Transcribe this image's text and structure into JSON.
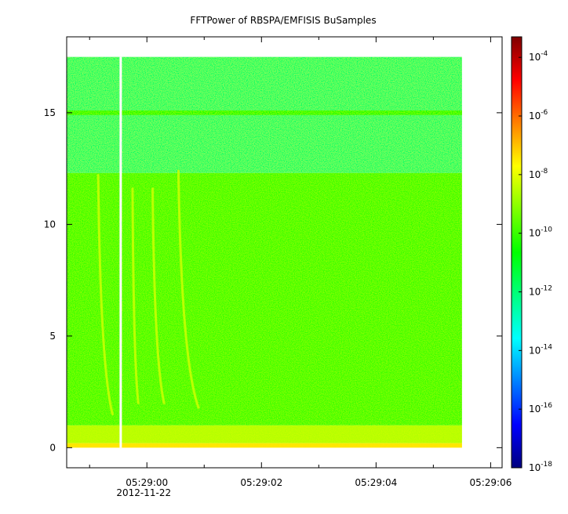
{
  "chart_data": {
    "type": "heatmap",
    "title": "FFTPower of RBSPA/EMFISIS  BuSamples",
    "xlabel": "",
    "ylabel": "",
    "x_axis": {
      "ticks": [
        {
          "label": "05:29:00",
          "sublabel": "2012-11-22",
          "t": 0
        },
        {
          "label": "05:29:02",
          "sublabel": "",
          "t": 2
        },
        {
          "label": "05:29:04",
          "sublabel": "",
          "t": 4
        },
        {
          "label": "05:29:06",
          "sublabel": "",
          "t": 6
        }
      ],
      "minor_ticks": [
        -1,
        1,
        3,
        5
      ],
      "range_seconds": [
        -1.4,
        6.2
      ],
      "data_range_seconds": [
        -1.4,
        5.5
      ],
      "gap_seconds": -0.45
    },
    "y_axis": {
      "ticks": [
        0,
        5,
        10,
        15
      ],
      "ylim": [
        -0.9,
        18.4
      ],
      "data_range": [
        0,
        17.5
      ]
    },
    "colorbar": {
      "scale": "log",
      "ticks": [
        {
          "base": "10",
          "exp": "-4",
          "value": -4
        },
        {
          "base": "10",
          "exp": "-6",
          "value": -6
        },
        {
          "base": "10",
          "exp": "-8",
          "value": -8
        },
        {
          "base": "10",
          "exp": "-10",
          "value": -10
        },
        {
          "base": "10",
          "exp": "-12",
          "value": -12
        },
        {
          "base": "10",
          "exp": "-14",
          "value": -14
        },
        {
          "base": "10",
          "exp": "-16",
          "value": -16
        },
        {
          "base": "10",
          "exp": "-18",
          "value": -18
        }
      ],
      "range_log": [
        -18,
        -3.3
      ],
      "colors": [
        "#00007f",
        "#0000ff",
        "#0080ff",
        "#00ffff",
        "#00ff80",
        "#00ff00",
        "#80ff00",
        "#ffff00",
        "#ff8000",
        "#ff0000",
        "#7f0000"
      ]
    },
    "bands": [
      {
        "f_min": 12.3,
        "f_max": 17.5,
        "log_power": -11.8
      },
      {
        "f_min": 14.9,
        "f_max": 15.1,
        "log_power": -10.6
      },
      {
        "f_min": 1.0,
        "f_max": 12.3,
        "log_power": -10.1
      },
      {
        "f_min": 0.2,
        "f_max": 1.0,
        "log_power": -8.6
      },
      {
        "f_min": 0.0,
        "f_max": 0.2,
        "log_power": -7.4
      }
    ],
    "chorus_elements": [
      {
        "t_start": -0.85,
        "f_start": 12.2,
        "t_end": -0.6,
        "f_end": 1.5
      },
      {
        "t_start": -0.25,
        "f_start": 11.6,
        "t_end": -0.15,
        "f_end": 2.0
      },
      {
        "t_start": 0.1,
        "f_start": 11.6,
        "t_end": 0.3,
        "f_end": 2.0
      },
      {
        "t_start": 0.55,
        "f_start": 12.4,
        "t_end": 0.9,
        "f_end": 1.8
      }
    ]
  }
}
